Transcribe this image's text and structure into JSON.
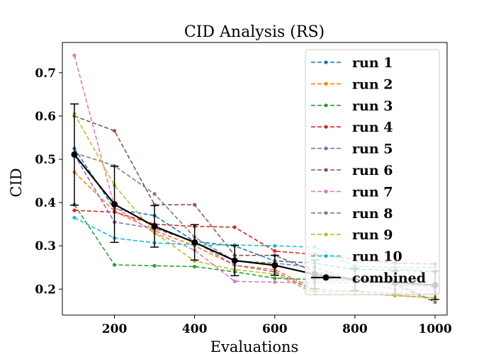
{
  "chart_data": {
    "type": "line",
    "title": "CID Analysis (RS)",
    "xlabel": "Evaluations",
    "ylabel": "CID",
    "xlim": [
      70,
      1030
    ],
    "ylim": [
      0.14,
      0.77
    ],
    "xticks": [
      200,
      400,
      600,
      800,
      1000
    ],
    "xtick_labels": [
      "200",
      "400",
      "600",
      "800",
      "1000"
    ],
    "yticks": [
      0.2,
      0.3,
      0.4,
      0.5,
      0.6,
      0.7
    ],
    "ytick_labels": [
      "0.2",
      "0.3",
      "0.4",
      "0.5",
      "0.6",
      "0.7"
    ],
    "grid": false,
    "legend_position": "top-right",
    "x": [
      100,
      200,
      300,
      400,
      500,
      600,
      700,
      800,
      900,
      1000
    ],
    "series": [
      {
        "name": "run 1",
        "color": "#1f77b4",
        "style": "dashed",
        "values": [
          0.525,
          0.385,
          0.37,
          0.31,
          0.3,
          0.265,
          0.26,
          0.245,
          0.245,
          0.24
        ]
      },
      {
        "name": "run 2",
        "color": "#ff7f0e",
        "style": "dashed",
        "values": [
          0.47,
          0.38,
          0.335,
          0.3,
          0.255,
          0.245,
          0.2,
          0.195,
          0.185,
          0.18
        ]
      },
      {
        "name": "run 3",
        "color": "#2ca02c",
        "style": "dashed",
        "values": [
          0.395,
          0.256,
          0.254,
          0.252,
          0.24,
          0.225,
          0.222,
          0.22,
          0.21,
          0.205
        ]
      },
      {
        "name": "run 4",
        "color": "#d62728",
        "style": "dashed",
        "values": [
          0.382,
          0.378,
          0.35,
          0.345,
          0.343,
          0.288,
          0.28,
          0.27,
          0.26,
          0.258
        ]
      },
      {
        "name": "run 5",
        "color": "#9467bd",
        "style": "dashed",
        "values": [
          0.51,
          0.355,
          0.34,
          0.31,
          0.255,
          0.24,
          0.195,
          0.195,
          0.19,
          0.19
        ]
      },
      {
        "name": "run 6",
        "color": "#8c564b",
        "style": "dashed",
        "values": [
          0.6,
          0.566,
          0.395,
          0.395,
          0.278,
          0.278,
          0.24,
          0.22,
          0.215,
          0.17
        ]
      },
      {
        "name": "run 7",
        "color": "#e377c2",
        "style": "dashed",
        "values": [
          0.74,
          0.39,
          0.33,
          0.29,
          0.218,
          0.216,
          0.215,
          0.215,
          0.2,
          0.198
        ]
      },
      {
        "name": "run 8",
        "color": "#7f7f7f",
        "style": "dashed",
        "values": [
          0.515,
          0.485,
          0.42,
          0.32,
          0.265,
          0.26,
          0.25,
          0.22,
          0.21,
          0.17
        ]
      },
      {
        "name": "run 9",
        "color": "#bcbd22",
        "style": "dashed",
        "values": [
          0.605,
          0.44,
          0.33,
          0.265,
          0.245,
          0.235,
          0.19,
          0.19,
          0.185,
          0.18
        ]
      },
      {
        "name": "run 10",
        "color": "#17becf",
        "style": "dashed",
        "values": [
          0.365,
          0.318,
          0.307,
          0.302,
          0.302,
          0.3,
          0.297,
          0.253,
          0.25,
          0.25
        ]
      },
      {
        "name": "combined",
        "color": "#000000",
        "style": "solid",
        "marker": "large",
        "values": [
          0.511,
          0.396,
          0.345,
          0.308,
          0.266,
          0.255,
          0.234,
          0.222,
          0.215,
          0.209
        ],
        "error": [
          0.117,
          0.088,
          0.048,
          0.041,
          0.035,
          0.023,
          0.033,
          0.026,
          0.027,
          0.033
        ]
      }
    ]
  }
}
